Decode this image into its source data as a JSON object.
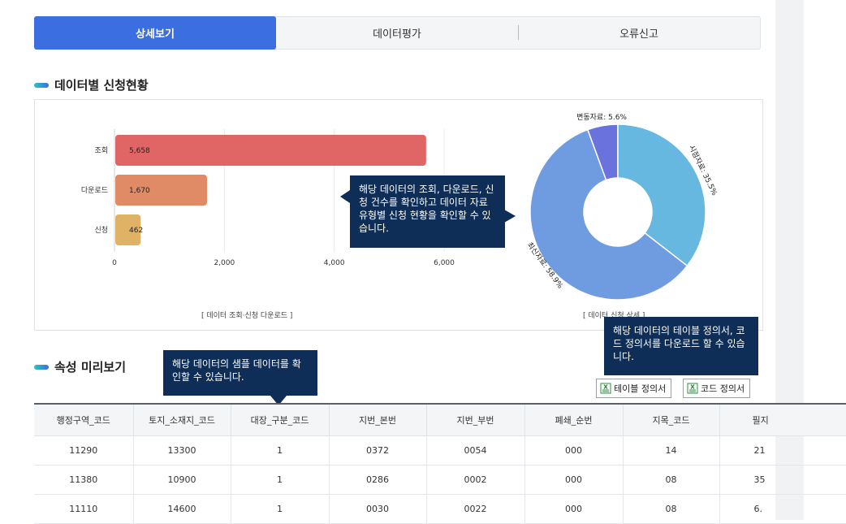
{
  "tabs": [
    {
      "label": "상세보기",
      "active": true
    },
    {
      "label": "데이터평가",
      "active": false
    },
    {
      "label": "오류신고",
      "active": false
    }
  ],
  "section_chart_title": "데이터별 신청현황",
  "section_preview_title": "속성 미리보기",
  "chart_data": [
    {
      "type": "bar",
      "orientation": "horizontal",
      "categories": [
        "조회",
        "다운로드",
        "신청"
      ],
      "values": [
        5658,
        1670,
        462
      ],
      "value_labels": [
        "5,658",
        "1,670",
        "462"
      ],
      "colors": [
        "#e06666",
        "#e08a66",
        "#e0b266"
      ],
      "xticks": [
        "0",
        "2,000",
        "4,000",
        "6,000"
      ],
      "xlim": [
        0,
        6000
      ],
      "caption": "[ 데이터 조회·신청 다운로드 ]"
    },
    {
      "type": "pie",
      "donut": true,
      "slices": [
        {
          "label": "변동자료: 5.6%",
          "value": 5.6,
          "color": "#6a72dd"
        },
        {
          "label": "시점자료: 35.5%",
          "value": 35.5,
          "color": "#66b8e0"
        },
        {
          "label": "최신자료: 58.9%",
          "value": 58.9,
          "color": "#6f9be0"
        }
      ],
      "caption": "[ 데이터 신청 상세 ]"
    }
  ],
  "tooltips": {
    "chart": "해당 데이터의 조회, 다운로드, 신청 건수를 확인하고 데이터 자료 유형별 신청 현황을 확인할 수 있습니다.",
    "sample": "해당 데이터의 샘플 데이터를 확인할 수 있습니다.",
    "docs": "해당 데이터의 테이블 정의서, 코드 정의서를 다운로드 할 수 있습니다."
  },
  "buttons": {
    "table_def": "테이블 정의서",
    "code_def": "코드 정의서",
    "icon": "excel-file-icon"
  },
  "table": {
    "headers": [
      "행정구역_코드",
      "토지_소재지_코드",
      "대장_구분_코드",
      "지번_본번",
      "지번_부번",
      "폐쇄_순번",
      "지목_코드",
      "필지"
    ],
    "rows": [
      [
        "11290",
        "13300",
        "1",
        "0372",
        "0054",
        "000",
        "14",
        "21"
      ],
      [
        "11380",
        "10900",
        "1",
        "0286",
        "0002",
        "000",
        "08",
        "35"
      ],
      [
        "11110",
        "14600",
        "1",
        "0030",
        "0022",
        "000",
        "08",
        "6."
      ]
    ]
  },
  "colors": {
    "accent": "#3b6ee0",
    "tooltip_bg": "#0e2d57"
  }
}
